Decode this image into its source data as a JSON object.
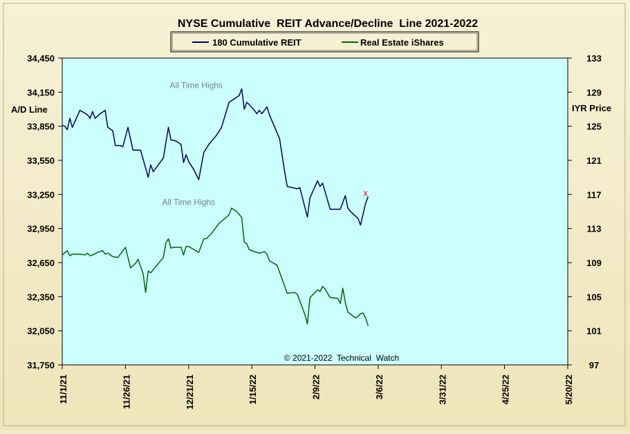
{
  "chart_data": {
    "type": "line",
    "title": "NYSE Cumulative  REIT Advance/Decline  Line 2021-2022",
    "left_axis": {
      "label": "A/D Line",
      "range": [
        31750,
        34450
      ],
      "ticks": [
        "34,450",
        "34,150",
        "33,850",
        "33,550",
        "33,250",
        "32,950",
        "32,650",
        "32,350",
        "32,050",
        "31,750"
      ]
    },
    "right_axis": {
      "label": "IYR Price",
      "range": [
        97,
        133
      ],
      "ticks": [
        "133",
        "129",
        "125",
        "121",
        "117",
        "113",
        "109",
        "105",
        "101",
        "97"
      ]
    },
    "x_axis": {
      "range": [
        "2021-11-01",
        "2022-05-20"
      ],
      "ticks": [
        {
          "date": "2021-11-01",
          "label": "11/1/21"
        },
        {
          "date": "2021-11-26",
          "label": "11/26/21"
        },
        {
          "date": "2021-12-21",
          "label": "12/21/21"
        },
        {
          "date": "2022-01-15",
          "label": "1/15/22"
        },
        {
          "date": "2022-02-09",
          "label": "2/9/22"
        },
        {
          "date": "2022-03-06",
          "label": "3/6/22"
        },
        {
          "date": "2022-03-31",
          "label": "3/31/22"
        },
        {
          "date": "2022-04-25",
          "label": "4/25/22"
        },
        {
          "date": "2022-05-20",
          "label": "5/20/22"
        }
      ]
    },
    "legend": {
      "placement": "top-center"
    },
    "series": [
      {
        "name": "180 Cumulative REIT",
        "axis": "left",
        "color": "#000066",
        "points": [
          [
            "2021-11-01",
            33860
          ],
          [
            "2021-11-02",
            33850
          ],
          [
            "2021-11-03",
            33820
          ],
          [
            "2021-11-04",
            33920
          ],
          [
            "2021-11-05",
            33840
          ],
          [
            "2021-11-08",
            33990
          ],
          [
            "2021-11-11",
            33950
          ],
          [
            "2021-11-12",
            33920
          ],
          [
            "2021-11-13",
            33980
          ],
          [
            "2021-11-14",
            33920
          ],
          [
            "2021-11-16",
            33960
          ],
          [
            "2021-11-18",
            33990
          ],
          [
            "2021-11-19",
            33840
          ],
          [
            "2021-11-21",
            33810
          ],
          [
            "2021-11-22",
            33680
          ],
          [
            "2021-11-24",
            33680
          ],
          [
            "2021-11-25",
            33670
          ],
          [
            "2021-11-27",
            33840
          ],
          [
            "2021-11-29",
            33640
          ],
          [
            "2021-12-02",
            33640
          ],
          [
            "2021-12-05",
            33400
          ],
          [
            "2021-12-06",
            33510
          ],
          [
            "2021-12-07",
            33450
          ],
          [
            "2021-12-11",
            33570
          ],
          [
            "2021-12-13",
            33840
          ],
          [
            "2021-12-14",
            33730
          ],
          [
            "2021-12-16",
            33720
          ],
          [
            "2021-12-18",
            33690
          ],
          [
            "2021-12-19",
            33530
          ],
          [
            "2021-12-20",
            33600
          ],
          [
            "2021-12-21",
            33540
          ],
          [
            "2021-12-23",
            33470
          ],
          [
            "2021-12-25",
            33380
          ],
          [
            "2021-12-27",
            33620
          ],
          [
            "2021-12-29",
            33690
          ],
          [
            "2022-01-01",
            33770
          ],
          [
            "2022-01-03",
            33840
          ],
          [
            "2022-01-06",
            34060
          ],
          [
            "2022-01-10",
            34120
          ],
          [
            "2022-01-11",
            34180
          ],
          [
            "2022-01-12",
            34000
          ],
          [
            "2022-01-13",
            34060
          ],
          [
            "2022-01-14",
            34040
          ],
          [
            "2022-01-16",
            33990
          ],
          [
            "2022-01-17",
            33960
          ],
          [
            "2022-01-18",
            33990
          ],
          [
            "2022-01-19",
            33960
          ],
          [
            "2022-01-21",
            34020
          ],
          [
            "2022-01-22",
            33950
          ],
          [
            "2022-01-26",
            33740
          ],
          [
            "2022-01-28",
            33450
          ],
          [
            "2022-01-29",
            33320
          ],
          [
            "2022-02-02",
            33300
          ],
          [
            "2022-02-03",
            33310
          ],
          [
            "2022-02-06",
            33050
          ],
          [
            "2022-02-07",
            33220
          ],
          [
            "2022-02-10",
            33370
          ],
          [
            "2022-02-11",
            33320
          ],
          [
            "2022-02-12",
            33350
          ],
          [
            "2022-02-15",
            33120
          ],
          [
            "2022-02-19",
            33120
          ],
          [
            "2022-02-21",
            33240
          ],
          [
            "2022-02-22",
            33130
          ],
          [
            "2022-02-23",
            33100
          ],
          [
            "2022-02-26",
            33040
          ],
          [
            "2022-02-27",
            32980
          ],
          [
            "2022-03-01",
            33170
          ],
          [
            "2022-03-02",
            33230
          ]
        ]
      },
      {
        "name": "Real Estate iShares",
        "axis": "right",
        "color": "#006600",
        "points": [
          [
            "2021-11-01",
            109.9
          ],
          [
            "2021-11-03",
            110.4
          ],
          [
            "2021-11-04",
            109.8
          ],
          [
            "2021-11-05",
            110.0
          ],
          [
            "2021-11-07",
            110.0
          ],
          [
            "2021-11-08",
            110.0
          ],
          [
            "2021-11-10",
            109.9
          ],
          [
            "2021-11-11",
            110.1
          ],
          [
            "2021-11-12",
            109.8
          ],
          [
            "2021-11-13",
            109.9
          ],
          [
            "2021-11-15",
            110.2
          ],
          [
            "2021-11-17",
            110.4
          ],
          [
            "2021-11-18",
            110.0
          ],
          [
            "2021-11-19",
            110.1
          ],
          [
            "2021-11-21",
            109.7
          ],
          [
            "2021-11-23",
            109.6
          ],
          [
            "2021-11-26",
            110.8
          ],
          [
            "2021-11-28",
            108.4
          ],
          [
            "2021-11-30",
            108.9
          ],
          [
            "2021-12-01",
            109.4
          ],
          [
            "2021-12-03",
            107.7
          ],
          [
            "2021-12-04",
            105.5
          ],
          [
            "2021-12-05",
            108.0
          ],
          [
            "2021-12-06",
            107.8
          ],
          [
            "2021-12-11",
            109.6
          ],
          [
            "2021-12-12",
            111.3
          ],
          [
            "2021-12-13",
            111.8
          ],
          [
            "2021-12-14",
            110.7
          ],
          [
            "2021-12-15",
            110.8
          ],
          [
            "2021-12-18",
            110.8
          ],
          [
            "2021-12-19",
            109.9
          ],
          [
            "2021-12-20",
            110.9
          ],
          [
            "2021-12-21",
            110.9
          ],
          [
            "2021-12-25",
            110.2
          ],
          [
            "2021-12-27",
            111.8
          ],
          [
            "2021-12-28",
            111.8
          ],
          [
            "2021-12-30",
            112.4
          ],
          [
            "2022-01-02",
            113.6
          ],
          [
            "2022-01-06",
            114.6
          ],
          [
            "2022-01-07",
            115.4
          ],
          [
            "2022-01-09",
            115.0
          ],
          [
            "2022-01-11",
            114.3
          ],
          [
            "2022-01-12",
            111.4
          ],
          [
            "2022-01-13",
            111.2
          ],
          [
            "2022-01-14",
            110.5
          ],
          [
            "2022-01-18",
            110.1
          ],
          [
            "2022-01-20",
            110.3
          ],
          [
            "2022-01-21",
            110.0
          ],
          [
            "2022-01-22",
            109.2
          ],
          [
            "2022-01-25",
            108.7
          ],
          [
            "2022-01-29",
            105.4
          ],
          [
            "2022-02-01",
            105.5
          ],
          [
            "2022-02-02",
            105.3
          ],
          [
            "2022-02-05",
            102.9
          ],
          [
            "2022-02-06",
            101.8
          ],
          [
            "2022-02-07",
            104.9
          ],
          [
            "2022-02-10",
            105.8
          ],
          [
            "2022-02-11",
            105.6
          ],
          [
            "2022-02-12",
            106.2
          ],
          [
            "2022-02-13",
            105.9
          ],
          [
            "2022-02-15",
            104.9
          ],
          [
            "2022-02-18",
            104.8
          ],
          [
            "2022-02-19",
            104.2
          ],
          [
            "2022-02-20",
            106.0
          ],
          [
            "2022-02-21",
            104.3
          ],
          [
            "2022-02-22",
            103.2
          ],
          [
            "2022-02-25",
            102.5
          ],
          [
            "2022-02-26",
            102.7
          ],
          [
            "2022-02-27",
            103.0
          ],
          [
            "2022-02-28",
            103.1
          ],
          [
            "2022-03-01",
            102.5
          ],
          [
            "2022-03-02",
            101.6
          ]
        ]
      }
    ],
    "annotations": [
      {
        "text": "All Time Highs",
        "date": "2021-12-24",
        "value": 34180,
        "axis": "left"
      },
      {
        "text": "All Time Highs",
        "date": "2021-12-21",
        "value": 115.7,
        "axis": "right"
      },
      {
        "text": "x",
        "date": "2022-03-01",
        "value": 33260,
        "axis": "left",
        "color": "#ff0000"
      }
    ],
    "footer": "© 2021-2022  Technical  Watch",
    "colors": {
      "plot_background": "#ccffff",
      "chart_background": "#f3ecc8"
    }
  }
}
